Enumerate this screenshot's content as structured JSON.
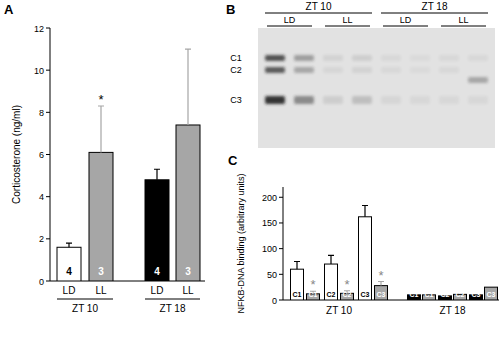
{
  "chart_data": [
    {
      "type": "bar",
      "panel": "A",
      "y_label": "Corticosterone (ng/ml)",
      "categories": [
        "LD",
        "LL",
        "LD",
        "LL"
      ],
      "groups": [
        "ZT 10",
        "ZT 18"
      ],
      "values": [
        1.6,
        6.1,
        4.8,
        7.4
      ],
      "errors": [
        0.2,
        2.2,
        0.5,
        3.6
      ],
      "colors": [
        "#ffffff",
        "#a6a6a6",
        "#000000",
        "#a6a6a6"
      ],
      "n": [
        4,
        3,
        4,
        3
      ],
      "significance": [
        null,
        "*",
        null,
        null
      ],
      "ylim": [
        0,
        12
      ],
      "yticks": [
        0,
        2,
        4,
        6,
        8,
        10,
        12
      ]
    },
    {
      "type": "bar",
      "panel": "C",
      "y_label": "NFKB-DNA binding (arbitrary units)",
      "categories": [
        "C1",
        "C1",
        "C2",
        "C2",
        "C3",
        "C3",
        "C1",
        "C1",
        "C2",
        "C2",
        "C3",
        "C3"
      ],
      "groups": [
        "ZT 10",
        "ZT 18"
      ],
      "values": [
        60,
        12,
        70,
        13,
        162,
        28,
        10,
        10,
        8,
        11,
        10,
        25
      ],
      "errors": [
        15,
        5,
        17,
        5,
        22,
        8,
        null,
        null,
        null,
        null,
        null,
        null
      ],
      "colors": [
        "#ffffff",
        "#a6a6a6",
        "#ffffff",
        "#a6a6a6",
        "#ffffff",
        "#a6a6a6",
        "#000000",
        "#a6a6a6",
        "#000000",
        "#a6a6a6",
        "#000000",
        "#a6a6a6"
      ],
      "significance": [
        null,
        "*",
        null,
        "*",
        null,
        "*",
        null,
        null,
        null,
        null,
        null,
        null
      ],
      "ylim": [
        0,
        220
      ],
      "yticks": [
        0,
        50,
        100,
        150,
        200
      ]
    }
  ],
  "gel": {
    "panel": "B",
    "groups": [
      "ZT 10",
      "ZT 18"
    ],
    "lanes": [
      "LD",
      "LL",
      "LD",
      "LL"
    ],
    "bands": [
      "C1",
      "C2",
      "C3"
    ]
  }
}
